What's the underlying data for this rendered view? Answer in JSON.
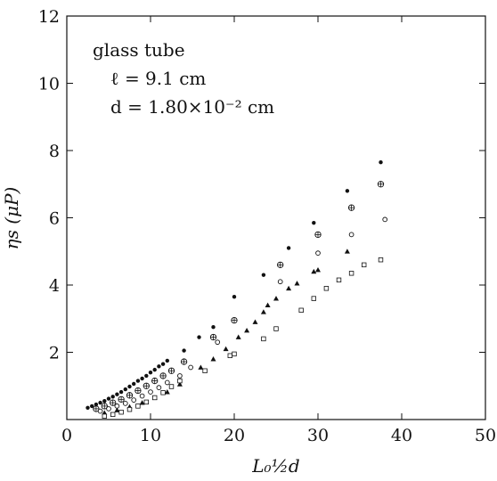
{
  "chart_data": {
    "type": "scatter",
    "title": "",
    "xlabel": "L₀½d",
    "ylabel": "ηs (μP)",
    "xlim": [
      0,
      50
    ],
    "ylim": [
      0,
      12
    ],
    "x_ticks": [
      "0",
      "10",
      "20",
      "30",
      "40",
      "50"
    ],
    "y_ticks": [
      "2",
      "4",
      "6",
      "8",
      "10",
      "12"
    ],
    "grid": false,
    "annotation": {
      "line1": "glass tube",
      "line2": "ℓ = 9.1 cm",
      "line3": "d = 1.80×10⁻² cm"
    },
    "series": [
      {
        "marker": "filled-circle",
        "points": [
          [
            2.5,
            0.35
          ],
          [
            3.0,
            0.4
          ],
          [
            3.5,
            0.45
          ],
          [
            4.0,
            0.5
          ],
          [
            4.5,
            0.55
          ],
          [
            5.0,
            0.62
          ],
          [
            5.5,
            0.68
          ],
          [
            6.0,
            0.75
          ],
          [
            6.5,
            0.82
          ],
          [
            7.0,
            0.9
          ],
          [
            7.5,
            0.98
          ],
          [
            8.0,
            1.06
          ],
          [
            8.5,
            1.15
          ],
          [
            9.0,
            1.22
          ],
          [
            9.5,
            1.3
          ],
          [
            10.0,
            1.4
          ],
          [
            10.5,
            1.48
          ],
          [
            11.0,
            1.58
          ],
          [
            11.5,
            1.65
          ],
          [
            12.0,
            1.75
          ],
          [
            14.0,
            2.05
          ],
          [
            15.8,
            2.45
          ],
          [
            17.5,
            2.75
          ],
          [
            20.0,
            3.65
          ],
          [
            23.5,
            4.3
          ],
          [
            26.5,
            5.1
          ],
          [
            29.5,
            5.85
          ],
          [
            33.5,
            6.8
          ],
          [
            37.5,
            7.65
          ]
        ]
      },
      {
        "marker": "circle-plus",
        "points": [
          [
            3.5,
            0.32
          ],
          [
            4.5,
            0.4
          ],
          [
            5.5,
            0.5
          ],
          [
            6.5,
            0.6
          ],
          [
            7.5,
            0.72
          ],
          [
            8.5,
            0.86
          ],
          [
            9.5,
            1.0
          ],
          [
            10.5,
            1.15
          ],
          [
            11.5,
            1.3
          ],
          [
            12.5,
            1.45
          ],
          [
            14.0,
            1.72
          ],
          [
            17.5,
            2.45
          ],
          [
            20.0,
            2.95
          ],
          [
            25.5,
            4.6
          ],
          [
            30.0,
            5.5
          ],
          [
            34.0,
            6.3
          ],
          [
            37.5,
            7.0
          ]
        ]
      },
      {
        "marker": "open-circle",
        "points": [
          [
            4.0,
            0.25
          ],
          [
            5.0,
            0.32
          ],
          [
            6.0,
            0.4
          ],
          [
            7.0,
            0.48
          ],
          [
            8.0,
            0.58
          ],
          [
            9.0,
            0.7
          ],
          [
            10.0,
            0.82
          ],
          [
            11.0,
            0.95
          ],
          [
            12.0,
            1.1
          ],
          [
            13.5,
            1.3
          ],
          [
            14.8,
            1.55
          ],
          [
            18.0,
            2.3
          ],
          [
            25.5,
            4.1
          ],
          [
            30.0,
            4.95
          ],
          [
            34.0,
            5.5
          ],
          [
            38.0,
            5.95
          ]
        ]
      },
      {
        "marker": "filled-triangle",
        "points": [
          [
            4.5,
            0.2
          ],
          [
            6.0,
            0.28
          ],
          [
            7.5,
            0.38
          ],
          [
            9.0,
            0.5
          ],
          [
            10.5,
            0.65
          ],
          [
            12.0,
            0.82
          ],
          [
            13.5,
            1.05
          ],
          [
            16.0,
            1.55
          ],
          [
            17.5,
            1.8
          ],
          [
            19.0,
            2.1
          ],
          [
            20.5,
            2.45
          ],
          [
            21.5,
            2.65
          ],
          [
            22.5,
            2.9
          ],
          [
            23.5,
            3.2
          ],
          [
            24.0,
            3.4
          ],
          [
            25.0,
            3.6
          ],
          [
            26.5,
            3.9
          ],
          [
            27.5,
            4.05
          ],
          [
            29.5,
            4.4
          ],
          [
            30.0,
            4.45
          ],
          [
            33.5,
            5.0
          ]
        ]
      },
      {
        "marker": "open-square",
        "points": [
          [
            4.5,
            0.1
          ],
          [
            5.5,
            0.15
          ],
          [
            6.5,
            0.22
          ],
          [
            7.5,
            0.3
          ],
          [
            8.5,
            0.4
          ],
          [
            9.5,
            0.52
          ],
          [
            10.5,
            0.65
          ],
          [
            11.5,
            0.8
          ],
          [
            12.5,
            0.98
          ],
          [
            13.5,
            1.15
          ],
          [
            16.5,
            1.45
          ],
          [
            19.5,
            1.9
          ],
          [
            20.0,
            1.95
          ],
          [
            23.5,
            2.4
          ],
          [
            25.0,
            2.7
          ],
          [
            28.0,
            3.25
          ],
          [
            29.5,
            3.6
          ],
          [
            31.0,
            3.9
          ],
          [
            32.5,
            4.15
          ],
          [
            34.0,
            4.35
          ],
          [
            35.5,
            4.6
          ],
          [
            37.5,
            4.75
          ]
        ]
      }
    ]
  }
}
